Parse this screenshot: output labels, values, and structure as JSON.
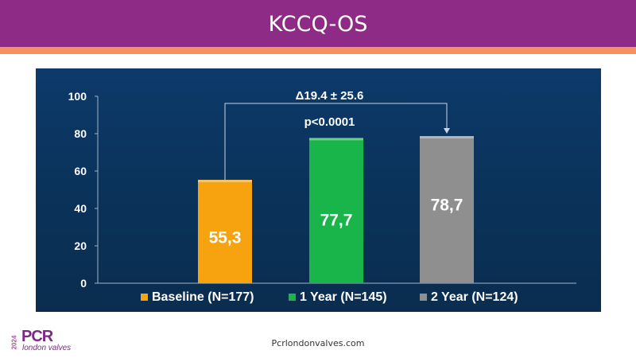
{
  "header": {
    "title": "KCCQ-OS"
  },
  "footer": {
    "url": "Pcrlondonvalves.com"
  },
  "logo": {
    "year": "2024",
    "brand": "PCR",
    "subtitle": "london valves"
  },
  "colors": {
    "header": "#8e2b86",
    "accent": "#f4925f",
    "panel": "#0b355f"
  },
  "chart_data": {
    "type": "bar",
    "categories": [
      "Baseline (N=177)",
      "1 Year (N=145)",
      "2 Year (N=124)"
    ],
    "values": [
      55.3,
      77.7,
      78.7
    ],
    "value_labels": [
      "55,3",
      "77,7",
      "78,7"
    ],
    "colors": [
      "#f7a20f",
      "#19b54a",
      "#8f8f8f"
    ],
    "ylim": [
      0,
      100
    ],
    "yticks": [
      0,
      20,
      40,
      60,
      80,
      100
    ],
    "grid": false,
    "legend": "bottom",
    "annotation": {
      "from": 0,
      "to": 2,
      "delta": "Δ19.4 ± 25.6",
      "p": "p<0.0001"
    }
  }
}
